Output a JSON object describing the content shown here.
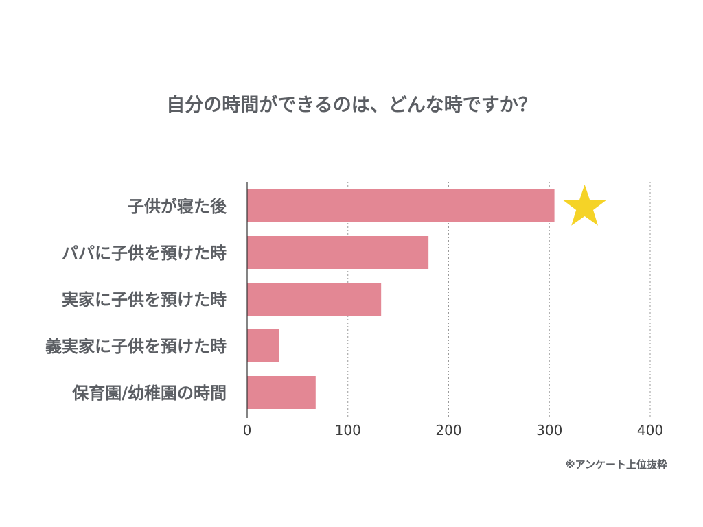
{
  "chart_data": {
    "type": "bar",
    "orientation": "horizontal",
    "title": "自分の時間ができるのは、どんな時ですか？",
    "categories": [
      "子供が寝た後",
      "パパに子供を預けた時",
      "実家に子供を預けた時",
      "義実家に子供を預けた時",
      "保育園/幼稚園の時間"
    ],
    "values": [
      305,
      180,
      133,
      32,
      68
    ],
    "xlim": [
      0,
      400
    ],
    "xticks": [
      0,
      100,
      200,
      300,
      400
    ],
    "grid": true,
    "bar_color": "#e38794",
    "highlight": {
      "category_index": 0,
      "marker": "star",
      "color": "#f5d327"
    },
    "note": "※アンケート上位抜粋"
  }
}
